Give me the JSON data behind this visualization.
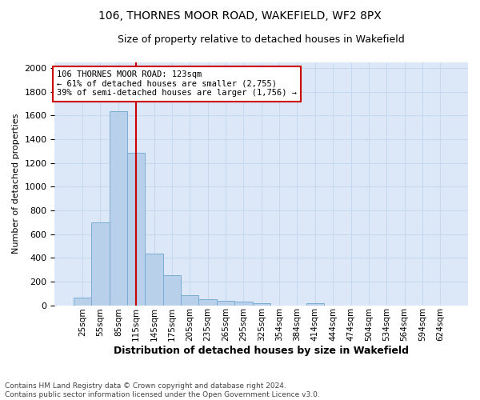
{
  "title": "106, THORNES MOOR ROAD, WAKEFIELD, WF2 8PX",
  "subtitle": "Size of property relative to detached houses in Wakefield",
  "xlabel": "Distribution of detached houses by size in Wakefield",
  "ylabel": "Number of detached properties",
  "footer_line1": "Contains HM Land Registry data © Crown copyright and database right 2024.",
  "footer_line2": "Contains public sector information licensed under the Open Government Licence v3.0.",
  "categories": [
    "25sqm",
    "55sqm",
    "85sqm",
    "115sqm",
    "145sqm",
    "175sqm",
    "205sqm",
    "235sqm",
    "265sqm",
    "295sqm",
    "325sqm",
    "354sqm",
    "384sqm",
    "414sqm",
    "444sqm",
    "474sqm",
    "504sqm",
    "534sqm",
    "564sqm",
    "594sqm",
    "624sqm"
  ],
  "values": [
    65,
    695,
    1635,
    1285,
    435,
    250,
    85,
    50,
    38,
    28,
    18,
    0,
    0,
    18,
    0,
    0,
    0,
    0,
    0,
    0,
    0
  ],
  "bar_color": "#b8d0ea",
  "bar_edge_color": "#7aadd4",
  "grid_color": "#c8d8ee",
  "vline_x": 3.0,
  "vline_color": "#cc0000",
  "annotation_line1": "106 THORNES MOOR ROAD: 123sqm",
  "annotation_line2": "← 61% of detached houses are smaller (2,755)",
  "annotation_line3": "39% of semi-detached houses are larger (1,756) →",
  "annotation_box_edgecolor": "#cc0000",
  "ylim": [
    0,
    2050
  ],
  "yticks": [
    0,
    200,
    400,
    600,
    800,
    1000,
    1200,
    1400,
    1600,
    1800,
    2000
  ],
  "plot_bg_color": "#dce8f8",
  "title_fontsize": 10,
  "subtitle_fontsize": 9,
  "ylabel_fontsize": 8,
  "xlabel_fontsize": 9,
  "tick_fontsize": 8,
  "xtick_fontsize": 7.5,
  "footer_fontsize": 6.5
}
